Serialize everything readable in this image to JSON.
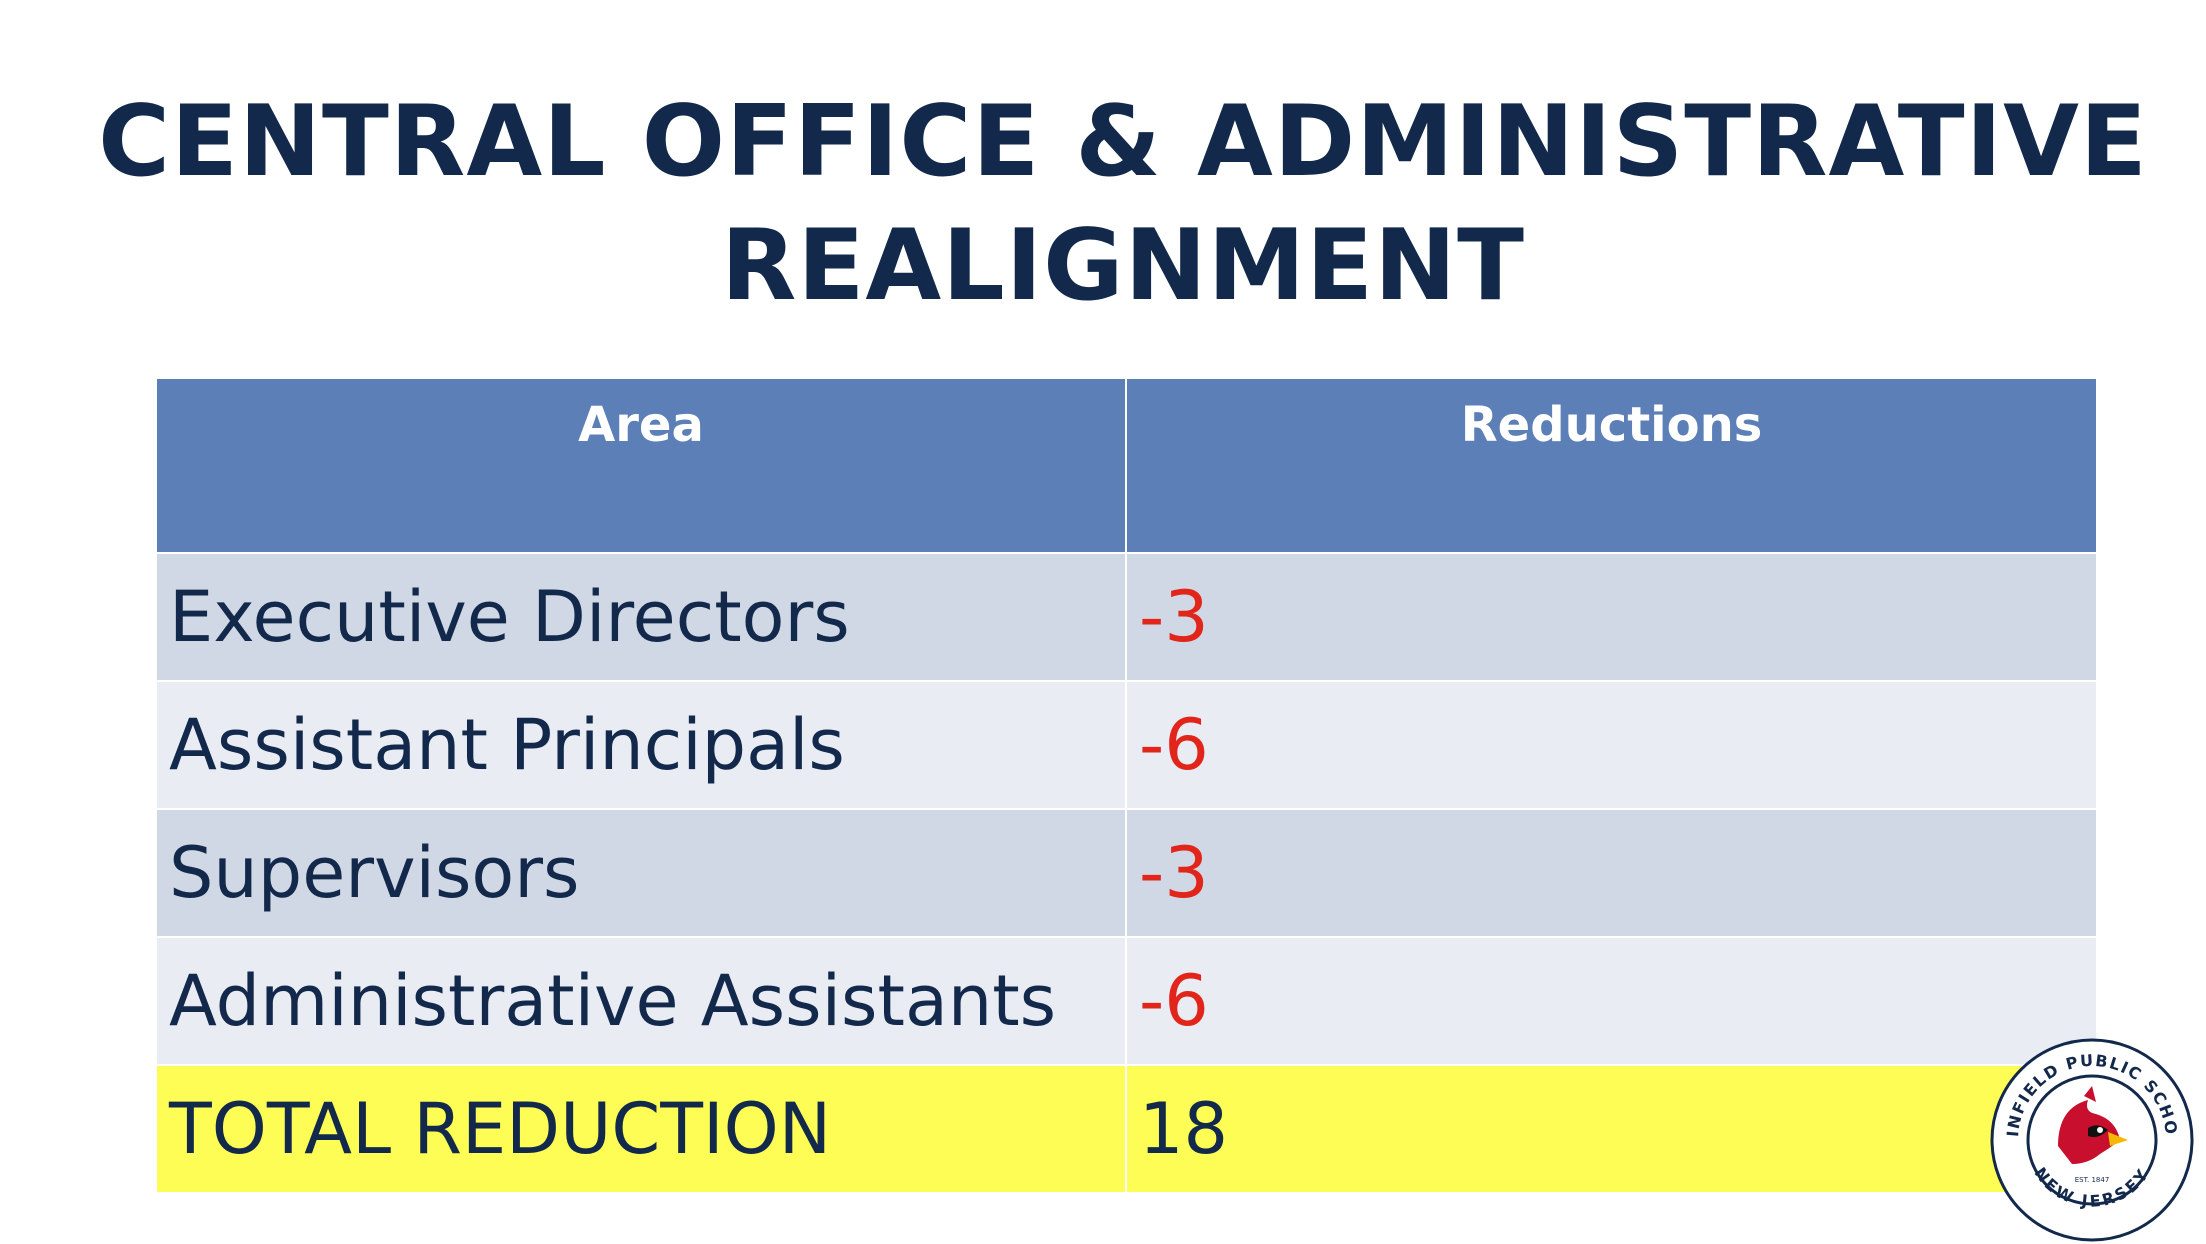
{
  "title": {
    "line1": "CENTRAL OFFICE & ADMINISTRATIVE",
    "line2": "REALIGNMENT"
  },
  "table": {
    "headers": [
      "Area",
      "Reductions"
    ],
    "rows": [
      {
        "area": "Executive Directors",
        "reduction": "-3"
      },
      {
        "area": "Assistant Principals",
        "reduction": "-6"
      },
      {
        "area": "Supervisors",
        "reduction": "-3"
      },
      {
        "area": "Administrative Assistants",
        "reduction": "-6"
      }
    ],
    "total": {
      "area": "TOTAL REDUCTION",
      "reduction": "18"
    }
  },
  "logo": {
    "text_top": "PLAINFIELD PUBLIC SCHOOLS",
    "text_bottom": "NEW JERSEY",
    "established": "EST. 1847",
    "icon": "cardinal-icon"
  },
  "colors": {
    "title": "#13294b",
    "header_bg": "#5b7fb6",
    "row_dark": "#d1d8e5",
    "row_light": "#e9ecf3",
    "total_bg": "#fdfd55",
    "negative": "#e1251b"
  }
}
